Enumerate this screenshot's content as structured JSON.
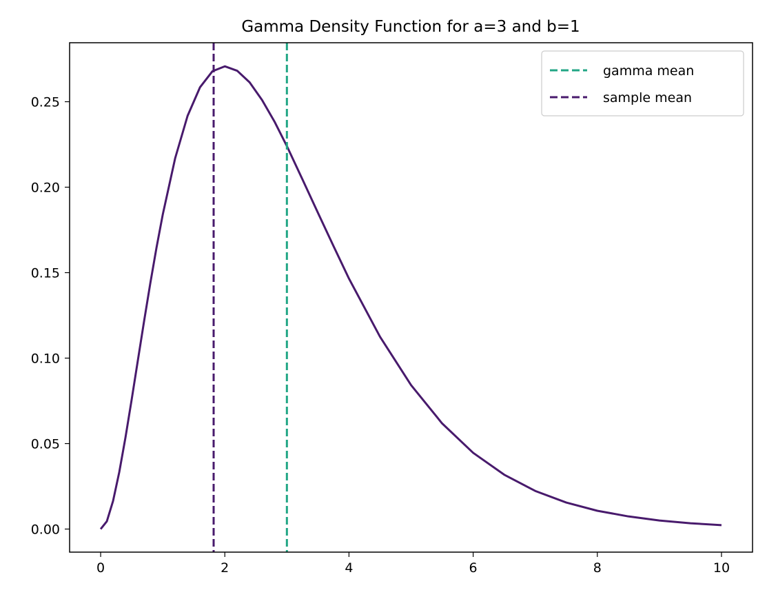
{
  "chart_data": {
    "type": "line",
    "title": "Gamma Density Function for a=3 and b=1",
    "xlabel": "",
    "ylabel": "",
    "xlim": [
      -0.5,
      10.5
    ],
    "ylim": [
      -0.0135,
      0.2845
    ],
    "xticks": [
      0,
      2,
      4,
      6,
      8,
      10
    ],
    "xtick_labels": [
      "0",
      "2",
      "4",
      "6",
      "8",
      "10"
    ],
    "yticks": [
      0.0,
      0.05,
      0.1,
      0.15,
      0.2,
      0.25
    ],
    "ytick_labels": [
      "0.00",
      "0.05",
      "0.10",
      "0.15",
      "0.20",
      "0.25"
    ],
    "grid": false,
    "legend_position": "top-right",
    "series": [
      {
        "kind": "curve",
        "color": "#481a6c",
        "x": [
          0,
          0.1,
          0.2,
          0.3,
          0.4,
          0.5,
          0.6,
          0.7,
          0.8,
          0.9,
          1.0,
          1.2,
          1.4,
          1.6,
          1.8,
          2.0,
          2.2,
          2.4,
          2.6,
          2.8,
          3.0,
          3.25,
          3.5,
          3.75,
          4.0,
          4.5,
          5.0,
          5.5,
          6.0,
          6.5,
          7.0,
          7.5,
          8.0,
          8.5,
          9.0,
          9.5,
          10.0
        ],
        "y": [
          0.0,
          0.0045,
          0.0164,
          0.0333,
          0.0536,
          0.0758,
          0.0988,
          0.1217,
          0.1438,
          0.1647,
          0.1839,
          0.2169,
          0.2417,
          0.2584,
          0.2678,
          0.2707,
          0.2681,
          0.2613,
          0.251,
          0.2384,
          0.224,
          0.2046,
          0.185,
          0.1656,
          0.1465,
          0.1125,
          0.0842,
          0.0618,
          0.0446,
          0.0318,
          0.0223,
          0.0155,
          0.0107,
          0.0074,
          0.005,
          0.0034,
          0.0023
        ]
      },
      {
        "kind": "vline",
        "name": "gamma mean",
        "x": 3.0,
        "color": "#21a685",
        "style": "dashed"
      },
      {
        "kind": "vline",
        "name": "sample mean",
        "x": 1.82,
        "color": "#481a6c",
        "style": "dashed"
      }
    ]
  }
}
